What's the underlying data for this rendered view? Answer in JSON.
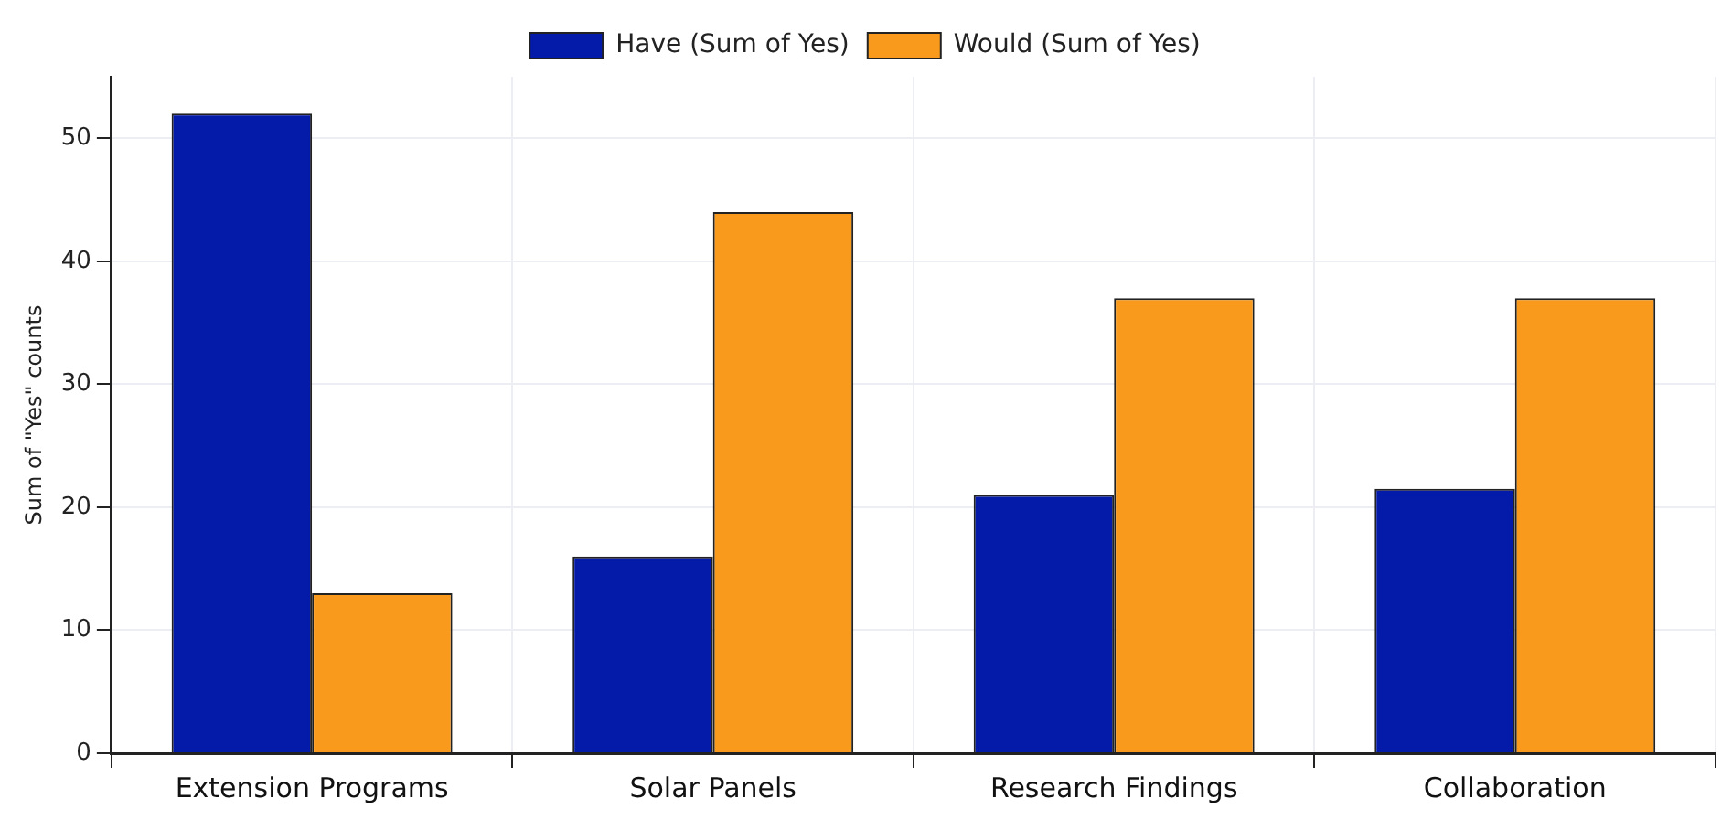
{
  "chart_data": {
    "type": "bar",
    "ylabel": "Sum of \"Yes\" counts",
    "categories": [
      "Extension Programs",
      "Solar Panels",
      "Research Findings",
      "Collaboration"
    ],
    "series": [
      {
        "name": "Have (Sum of Yes)",
        "color": "#041aa8",
        "values": [
          52,
          16,
          21,
          21.5
        ]
      },
      {
        "name": "Would (Sum of Yes)",
        "color": "#f99a1c",
        "values": [
          13,
          44,
          37,
          37
        ]
      }
    ],
    "ylim": [
      0,
      55
    ],
    "yticks": [
      0,
      10,
      20,
      30,
      40,
      50
    ],
    "grid": true,
    "legend": "top"
  }
}
